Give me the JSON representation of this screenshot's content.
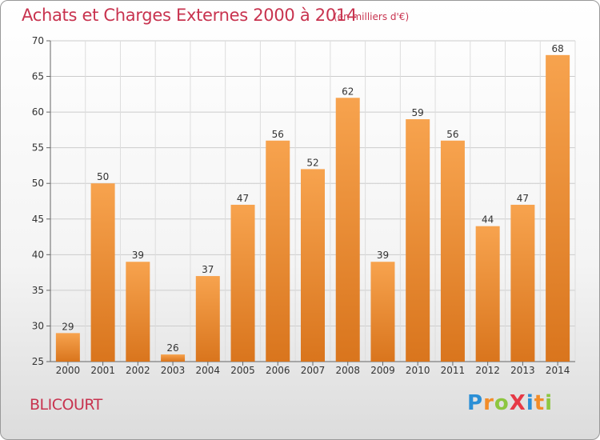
{
  "title": "Achats et Charges Externes 2000 à 2014",
  "subtitle": "(en milliers d'€)",
  "commune": "BLICOURT",
  "logo": {
    "letters": [
      {
        "ch": "P",
        "color": "#2b8fd6"
      },
      {
        "ch": "r",
        "color": "#f28c28"
      },
      {
        "ch": "o",
        "color": "#8dc63f"
      },
      {
        "ch": "X",
        "color": "#e63946"
      },
      {
        "ch": "i",
        "color": "#2b8fd6"
      },
      {
        "ch": "t",
        "color": "#f28c28"
      },
      {
        "ch": "i",
        "color": "#8dc63f"
      }
    ]
  },
  "colors": {
    "bar_top": "#f7a34e",
    "bar_bottom": "#d9751d",
    "title": "#c8334f",
    "grid": "#cccccc"
  },
  "chart_data": {
    "type": "bar",
    "categories": [
      "2000",
      "2001",
      "2002",
      "2003",
      "2004",
      "2005",
      "2006",
      "2007",
      "2008",
      "2009",
      "2010",
      "2011",
      "2012",
      "2013",
      "2014"
    ],
    "values": [
      29,
      50,
      39,
      26,
      37,
      47,
      56,
      52,
      62,
      39,
      59,
      56,
      44,
      47,
      68
    ],
    "title": "Achats et Charges Externes 2000 à 2014",
    "xlabel": "",
    "ylabel": "",
    "ylim": [
      25,
      70
    ],
    "yticks": [
      25,
      30,
      35,
      40,
      45,
      50,
      55,
      60,
      65,
      70
    ],
    "grid": true,
    "data_labels": true
  }
}
